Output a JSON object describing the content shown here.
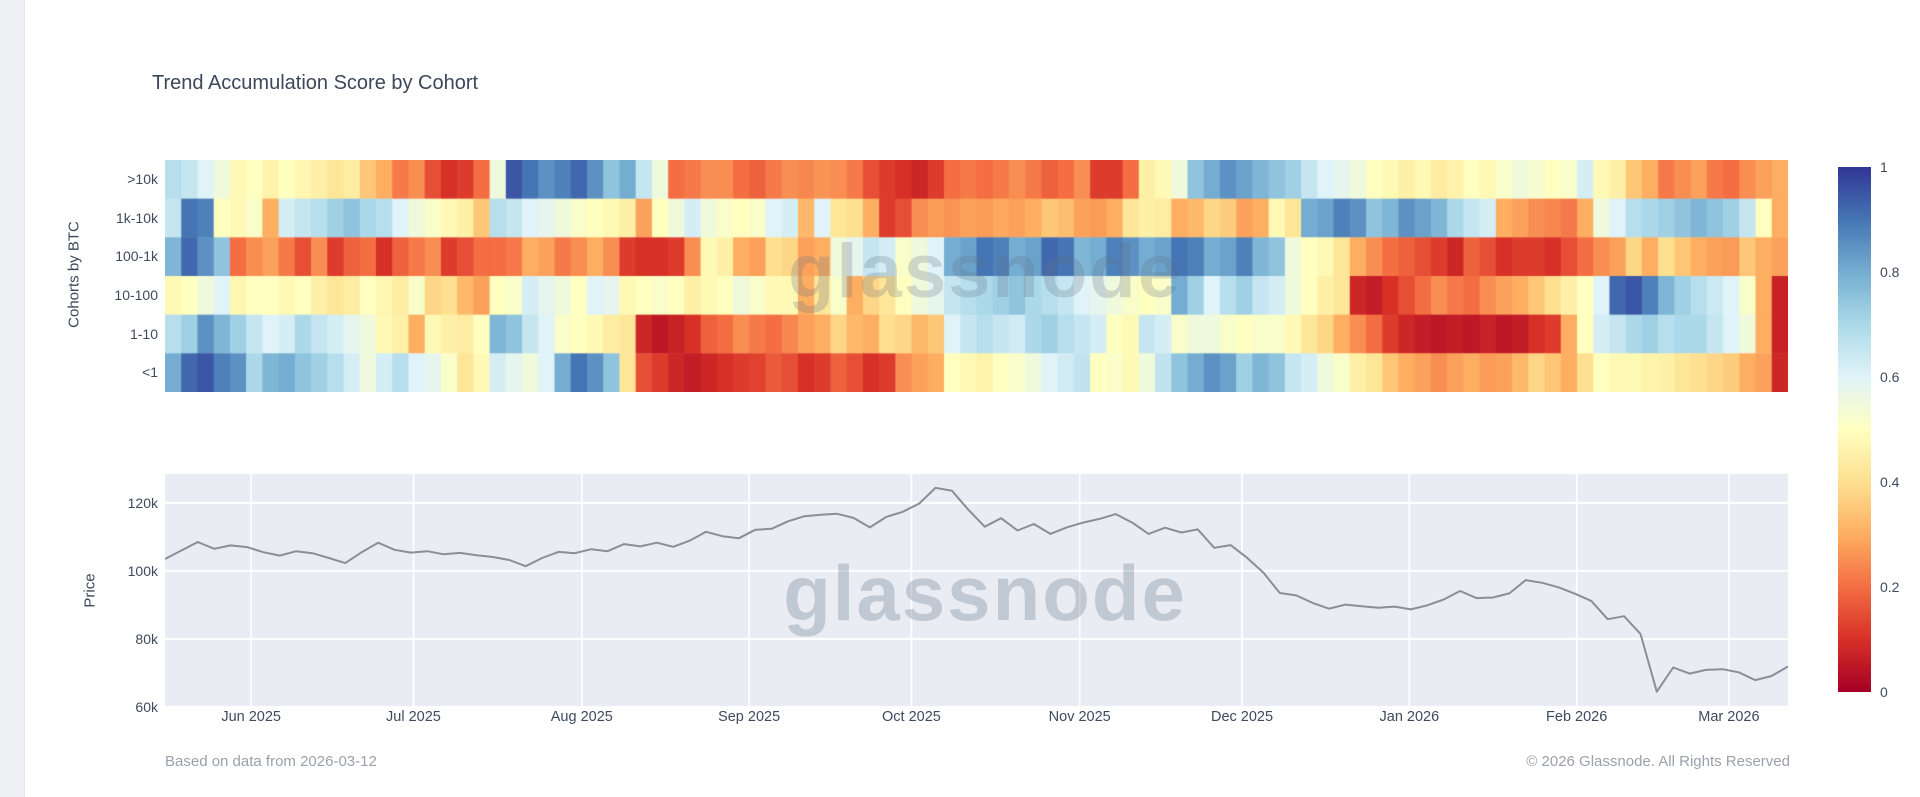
{
  "title": "Trend Accumulation Score by Cohort",
  "watermark": "glassnode",
  "footer": {
    "left": "Based on data from 2026-03-12",
    "right": "© 2026 Glassnode. All Rights Reserved"
  },
  "colorbar": {
    "ticks": [
      {
        "label": "1",
        "f": 0.0
      },
      {
        "label": "0.8",
        "f": 0.2
      },
      {
        "label": "0.6",
        "f": 0.4
      },
      {
        "label": "0.4",
        "f": 0.6
      },
      {
        "label": "0.2",
        "f": 0.8
      },
      {
        "label": "0",
        "f": 1.0
      }
    ],
    "stops": [
      [
        0.0,
        "#a50026"
      ],
      [
        0.1,
        "#d73027"
      ],
      [
        0.2,
        "#f46d43"
      ],
      [
        0.3,
        "#fdae61"
      ],
      [
        0.4,
        "#fee090"
      ],
      [
        0.5,
        "#ffffbf"
      ],
      [
        0.6,
        "#e0f3f8"
      ],
      [
        0.7,
        "#abd9e9"
      ],
      [
        0.8,
        "#74add1"
      ],
      [
        0.9,
        "#4575b4"
      ],
      [
        1.0,
        "#313695"
      ]
    ]
  },
  "chart_data": [
    {
      "type": "heatmap",
      "title": "Trend Accumulation Score by Cohort",
      "ylabel": "Cohorts by BTC",
      "colorscale": "RdYlBu",
      "zmin": 0,
      "zmax": 1,
      "x_range": [
        "2025-05-16",
        "2026-03-12"
      ],
      "legend_position": "right-colorbar",
      "series": [
        {
          "name": ">10k",
          "values": [
            0.68,
            0.65,
            0.6,
            0.55,
            0.48,
            0.5,
            0.46,
            0.5,
            0.47,
            0.45,
            0.42,
            0.44,
            0.35,
            0.3,
            0.22,
            0.25,
            0.15,
            0.1,
            0.12,
            0.2,
            0.55,
            0.95,
            0.9,
            0.85,
            0.88,
            0.92,
            0.85,
            0.75,
            0.8,
            0.65,
            0.55,
            0.2,
            0.22,
            0.25,
            0.25,
            0.2,
            0.18,
            0.22,
            0.25,
            0.24,
            0.26,
            0.25,
            0.22,
            0.15,
            0.12,
            0.1,
            0.08,
            0.12,
            0.2,
            0.22,
            0.2,
            0.22,
            0.25,
            0.22,
            0.18,
            0.2,
            0.25,
            0.12,
            0.12,
            0.2,
            0.45,
            0.48,
            0.55,
            0.75,
            0.8,
            0.85,
            0.82,
            0.78,
            0.75,
            0.72,
            0.65,
            0.6,
            0.58,
            0.55,
            0.5,
            0.48,
            0.45,
            0.48,
            0.44,
            0.46,
            0.5,
            0.48,
            0.52,
            0.55,
            0.53,
            0.5,
            0.52,
            0.62,
            0.48,
            0.45,
            0.35,
            0.3,
            0.22,
            0.25,
            0.28,
            0.22,
            0.2,
            0.25,
            0.28,
            0.3
          ]
        },
        {
          "name": "1k-10k",
          "values": [
            0.65,
            0.9,
            0.88,
            0.5,
            0.48,
            0.52,
            0.3,
            0.62,
            0.65,
            0.68,
            0.72,
            0.75,
            0.7,
            0.68,
            0.6,
            0.55,
            0.52,
            0.48,
            0.45,
            0.35,
            0.68,
            0.65,
            0.6,
            0.58,
            0.55,
            0.52,
            0.5,
            0.48,
            0.45,
            0.28,
            0.5,
            0.55,
            0.62,
            0.55,
            0.52,
            0.5,
            0.52,
            0.6,
            0.62,
            0.32,
            0.6,
            0.42,
            0.4,
            0.3,
            0.12,
            0.15,
            0.25,
            0.27,
            0.26,
            0.28,
            0.27,
            0.29,
            0.28,
            0.3,
            0.35,
            0.33,
            0.28,
            0.27,
            0.3,
            0.42,
            0.45,
            0.44,
            0.3,
            0.32,
            0.38,
            0.36,
            0.28,
            0.3,
            0.48,
            0.42,
            0.8,
            0.82,
            0.88,
            0.85,
            0.75,
            0.78,
            0.85,
            0.82,
            0.78,
            0.7,
            0.65,
            0.62,
            0.3,
            0.28,
            0.25,
            0.24,
            0.22,
            0.3,
            0.55,
            0.6,
            0.68,
            0.7,
            0.72,
            0.75,
            0.78,
            0.75,
            0.72,
            0.65,
            0.5,
            0.3
          ]
        },
        {
          "name": "100-1k",
          "values": [
            0.78,
            0.92,
            0.85,
            0.75,
            0.2,
            0.25,
            0.28,
            0.22,
            0.15,
            0.25,
            0.12,
            0.18,
            0.2,
            0.1,
            0.18,
            0.22,
            0.25,
            0.12,
            0.15,
            0.2,
            0.2,
            0.22,
            0.3,
            0.28,
            0.22,
            0.25,
            0.3,
            0.25,
            0.12,
            0.1,
            0.1,
            0.12,
            0.25,
            0.48,
            0.45,
            0.3,
            0.28,
            0.4,
            0.38,
            0.28,
            0.3,
            0.55,
            0.58,
            0.65,
            0.62,
            0.52,
            0.55,
            0.6,
            0.8,
            0.82,
            0.9,
            0.88,
            0.8,
            0.82,
            0.92,
            0.9,
            0.78,
            0.8,
            0.88,
            0.85,
            0.8,
            0.82,
            0.9,
            0.88,
            0.8,
            0.82,
            0.88,
            0.78,
            0.75,
            0.55,
            0.5,
            0.48,
            0.42,
            0.3,
            0.25,
            0.2,
            0.18,
            0.15,
            0.12,
            0.08,
            0.18,
            0.15,
            0.1,
            0.12,
            0.12,
            0.1,
            0.15,
            0.2,
            0.25,
            0.28,
            0.38,
            0.3,
            0.4,
            0.35,
            0.3,
            0.28,
            0.27,
            0.35,
            0.3,
            0.28
          ]
        },
        {
          "name": "10-100",
          "values": [
            0.48,
            0.5,
            0.55,
            0.6,
            0.47,
            0.5,
            0.5,
            0.48,
            0.5,
            0.45,
            0.42,
            0.44,
            0.5,
            0.47,
            0.44,
            0.52,
            0.38,
            0.4,
            0.32,
            0.28,
            0.5,
            0.52,
            0.62,
            0.58,
            0.55,
            0.5,
            0.6,
            0.58,
            0.48,
            0.5,
            0.52,
            0.5,
            0.45,
            0.48,
            0.5,
            0.55,
            0.52,
            0.48,
            0.48,
            0.3,
            0.42,
            0.52,
            0.3,
            0.38,
            0.42,
            0.5,
            0.55,
            0.58,
            0.65,
            0.68,
            0.7,
            0.72,
            0.75,
            0.7,
            0.68,
            0.65,
            0.6,
            0.58,
            0.55,
            0.52,
            0.5,
            0.52,
            0.8,
            0.72,
            0.6,
            0.68,
            0.72,
            0.65,
            0.62,
            0.55,
            0.5,
            0.45,
            0.42,
            0.08,
            0.06,
            0.1,
            0.15,
            0.2,
            0.25,
            0.22,
            0.2,
            0.25,
            0.28,
            0.3,
            0.35,
            0.4,
            0.45,
            0.5,
            0.6,
            0.92,
            0.95,
            0.88,
            0.78,
            0.72,
            0.68,
            0.64,
            0.6,
            0.52,
            0.3,
            0.07
          ]
        },
        {
          "name": "1-10",
          "values": [
            0.68,
            0.72,
            0.85,
            0.78,
            0.72,
            0.65,
            0.6,
            0.62,
            0.7,
            0.65,
            0.62,
            0.58,
            0.55,
            0.48,
            0.45,
            0.3,
            0.48,
            0.45,
            0.44,
            0.5,
            0.78,
            0.75,
            0.65,
            0.6,
            0.52,
            0.5,
            0.48,
            0.44,
            0.42,
            0.08,
            0.05,
            0.07,
            0.1,
            0.18,
            0.2,
            0.25,
            0.22,
            0.2,
            0.24,
            0.28,
            0.3,
            0.38,
            0.32,
            0.3,
            0.4,
            0.38,
            0.32,
            0.35,
            0.6,
            0.65,
            0.68,
            0.65,
            0.63,
            0.7,
            0.72,
            0.68,
            0.65,
            0.62,
            0.5,
            0.48,
            0.65,
            0.62,
            0.52,
            0.55,
            0.55,
            0.52,
            0.5,
            0.52,
            0.52,
            0.48,
            0.42,
            0.38,
            0.3,
            0.25,
            0.2,
            0.12,
            0.08,
            0.06,
            0.05,
            0.06,
            0.05,
            0.07,
            0.05,
            0.06,
            0.1,
            0.12,
            0.3,
            0.5,
            0.62,
            0.65,
            0.7,
            0.72,
            0.68,
            0.7,
            0.7,
            0.65,
            0.6,
            0.55,
            0.3,
            0.07
          ]
        },
        {
          "name": "<1",
          "values": [
            0.8,
            0.92,
            0.95,
            0.88,
            0.85,
            0.7,
            0.78,
            0.8,
            0.75,
            0.72,
            0.68,
            0.62,
            0.55,
            0.62,
            0.68,
            0.6,
            0.58,
            0.52,
            0.42,
            0.48,
            0.62,
            0.58,
            0.55,
            0.6,
            0.8,
            0.9,
            0.85,
            0.75,
            0.42,
            0.15,
            0.12,
            0.08,
            0.06,
            0.08,
            0.1,
            0.12,
            0.13,
            0.17,
            0.15,
            0.1,
            0.12,
            0.18,
            0.15,
            0.1,
            0.12,
            0.25,
            0.28,
            0.3,
            0.5,
            0.48,
            0.46,
            0.5,
            0.52,
            0.55,
            0.6,
            0.63,
            0.66,
            0.5,
            0.52,
            0.48,
            0.55,
            0.66,
            0.75,
            0.8,
            0.85,
            0.82,
            0.72,
            0.78,
            0.75,
            0.65,
            0.62,
            0.55,
            0.52,
            0.45,
            0.42,
            0.35,
            0.3,
            0.28,
            0.25,
            0.28,
            0.3,
            0.27,
            0.28,
            0.32,
            0.38,
            0.35,
            0.3,
            0.4,
            0.5,
            0.48,
            0.48,
            0.46,
            0.45,
            0.42,
            0.4,
            0.38,
            0.36,
            0.3,
            0.28,
            0.08
          ]
        }
      ],
      "x_ticks": [
        {
          "label": "Jun 2025",
          "f": 0.0531
        },
        {
          "label": "Jul 2025",
          "f": 0.1531
        },
        {
          "label": "Aug 2025",
          "f": 0.2568
        },
        {
          "label": "Sep 2025",
          "f": 0.3599
        },
        {
          "label": "Oct 2025",
          "f": 0.4599
        },
        {
          "label": "Nov 2025",
          "f": 0.5636
        },
        {
          "label": "Dec 2025",
          "f": 0.6636
        },
        {
          "label": "Jan 2026",
          "f": 0.7667
        },
        {
          "label": "Feb 2026",
          "f": 0.8698
        },
        {
          "label": "Mar 2026",
          "f": 0.9636
        }
      ]
    },
    {
      "type": "line",
      "name": "Price",
      "ylabel": "Price",
      "unit": "k USD",
      "line_color": "#898e97",
      "plot_background": "#e9edf3",
      "grid": true,
      "ylim": [
        59.7,
        128.5
      ],
      "y_ticks": [
        {
          "label": "120k",
          "v": 120
        },
        {
          "label": "100k",
          "v": 100
        },
        {
          "label": "80k",
          "v": 80
        },
        {
          "label": "60k",
          "v": 60
        }
      ],
      "x_ticks": [
        {
          "label": "Jun 2025",
          "f": 0.0531
        },
        {
          "label": "Jul 2025",
          "f": 0.1531
        },
        {
          "label": "Aug 2025",
          "f": 0.2568
        },
        {
          "label": "Sep 2025",
          "f": 0.3599
        },
        {
          "label": "Oct 2025",
          "f": 0.4599
        },
        {
          "label": "Nov 2025",
          "f": 0.5636
        },
        {
          "label": "Dec 2025",
          "f": 0.6636
        },
        {
          "label": "Jan 2026",
          "f": 0.7667
        },
        {
          "label": "Feb 2026",
          "f": 0.8698
        },
        {
          "label": "Mar 2026",
          "f": 0.9636
        }
      ],
      "values": [
        103.5,
        106.0,
        108.5,
        106.5,
        107.5,
        107.0,
        105.5,
        104.5,
        105.8,
        105.2,
        103.8,
        102.3,
        105.5,
        108.3,
        106.2,
        105.4,
        105.8,
        104.9,
        105.3,
        104.6,
        104.1,
        103.2,
        101.4,
        103.8,
        105.6,
        105.2,
        106.4,
        105.8,
        107.9,
        107.2,
        108.3,
        107.1,
        108.9,
        111.5,
        110.2,
        109.6,
        112.1,
        112.4,
        114.6,
        116.1,
        116.5,
        116.8,
        115.6,
        112.8,
        115.9,
        117.4,
        119.8,
        124.4,
        123.6,
        118.0,
        113.0,
        115.5,
        111.9,
        113.8,
        110.9,
        112.8,
        114.2,
        115.3,
        116.7,
        114.2,
        110.9,
        112.7,
        111.3,
        112.2,
        106.8,
        107.6,
        103.9,
        99.5,
        93.5,
        92.8,
        90.6,
        88.9,
        90.1,
        89.6,
        89.2,
        89.5,
        88.7,
        89.9,
        91.6,
        94.1,
        92.0,
        92.2,
        93.4,
        97.3,
        96.5,
        95.2,
        93.3,
        91.2,
        85.8,
        86.7,
        81.5,
        64.5,
        71.6,
        69.8,
        70.9,
        71.1,
        70.2,
        67.9,
        69.1,
        71.9
      ]
    }
  ]
}
